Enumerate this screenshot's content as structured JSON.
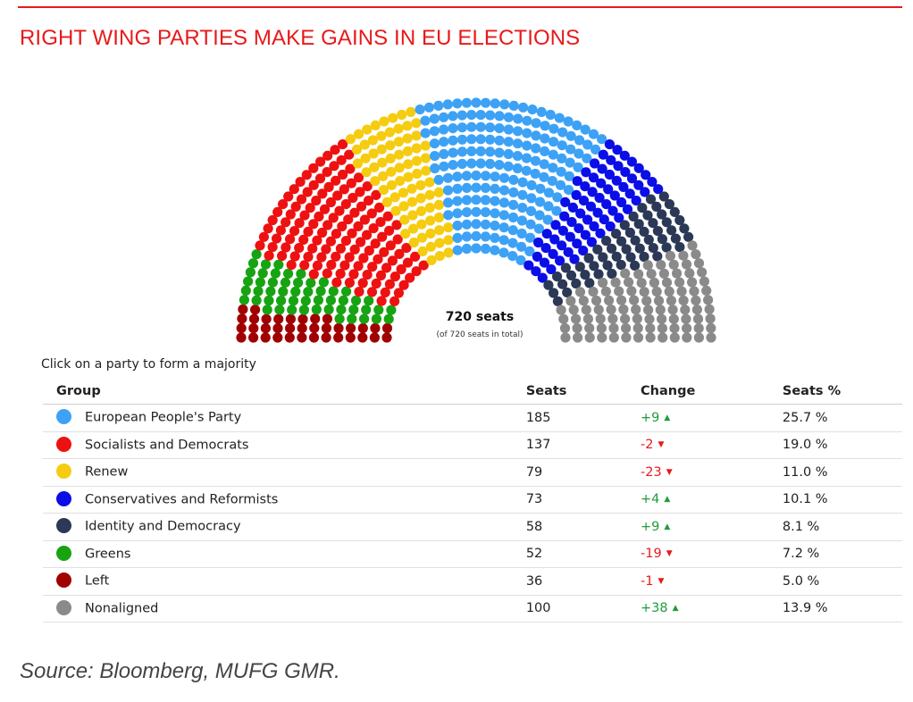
{
  "title": "RIGHT WING PARTIES MAKE GAINS IN EU ELECTIONS",
  "hint": "Click on a party to form a majority",
  "source": "Source: Bloomberg, MUFG GMR.",
  "chart_data": {
    "type": "hemicycle",
    "total_label": "720 seats",
    "total_sub": "(of 720 seats in total)",
    "total_seats": 720,
    "columns": [
      "Group",
      "Seats",
      "Change",
      "Seats %"
    ],
    "parties": [
      {
        "name": "Left",
        "seats": 36,
        "change": "-1",
        "direction": "down",
        "pct": "5.0 %",
        "color": "#a00000"
      },
      {
        "name": "Greens",
        "seats": 52,
        "change": "-19",
        "direction": "down",
        "pct": "7.2 %",
        "color": "#17a312"
      },
      {
        "name": "Socialists and Democrats",
        "seats": 137,
        "change": "-2",
        "direction": "down",
        "pct": "19.0 %",
        "color": "#ee1111"
      },
      {
        "name": "Renew",
        "seats": 79,
        "change": "-23",
        "direction": "down",
        "pct": "11.0 %",
        "color": "#f5cc11"
      },
      {
        "name": "European People's Party",
        "seats": 185,
        "change": "+9",
        "direction": "up",
        "pct": "25.7 %",
        "color": "#3da2f5"
      },
      {
        "name": "Conservatives and Reformists",
        "seats": 73,
        "change": "+4",
        "direction": "up",
        "pct": "10.1 %",
        "color": "#0b0ee6"
      },
      {
        "name": "Identity and Democracy",
        "seats": 58,
        "change": "+9",
        "direction": "up",
        "pct": "8.1 %",
        "color": "#2b3856"
      },
      {
        "name": "Nonaligned",
        "seats": 100,
        "change": "+38",
        "direction": "up",
        "pct": "13.9 %",
        "color": "#8a8a8a"
      }
    ],
    "table_order": [
      "European People's Party",
      "Socialists and Democrats",
      "Renew",
      "Conservatives and Reformists",
      "Identity and Democracy",
      "Greens",
      "Left",
      "Nonaligned"
    ]
  }
}
